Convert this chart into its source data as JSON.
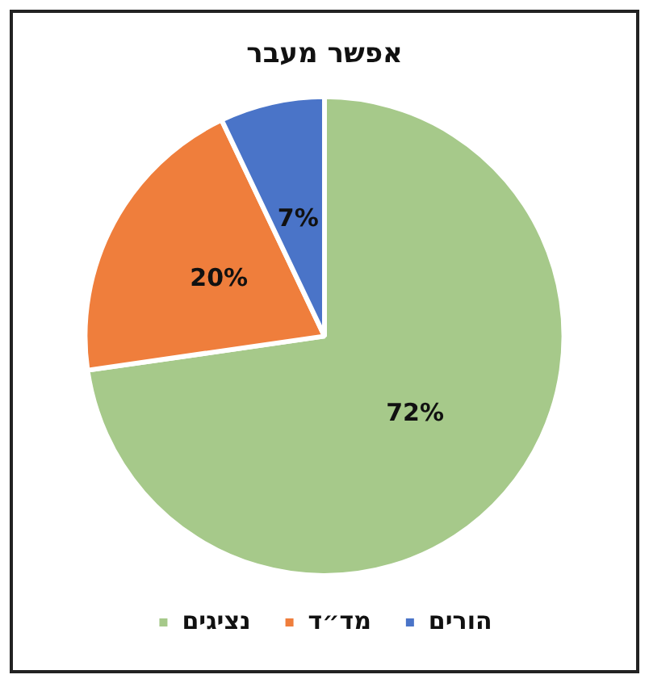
{
  "chart_data": {
    "type": "pie",
    "title": "אפשר מעבר",
    "categories": [
      "נציגים",
      "מד״ד",
      "הורים"
    ],
    "values": [
      72,
      20,
      7
    ],
    "value_labels": [
      "72%",
      "20%",
      "7%"
    ],
    "colors": [
      "#a6c98a",
      "#ef7e3c",
      "#4a74c8"
    ],
    "legend": "bottom"
  }
}
